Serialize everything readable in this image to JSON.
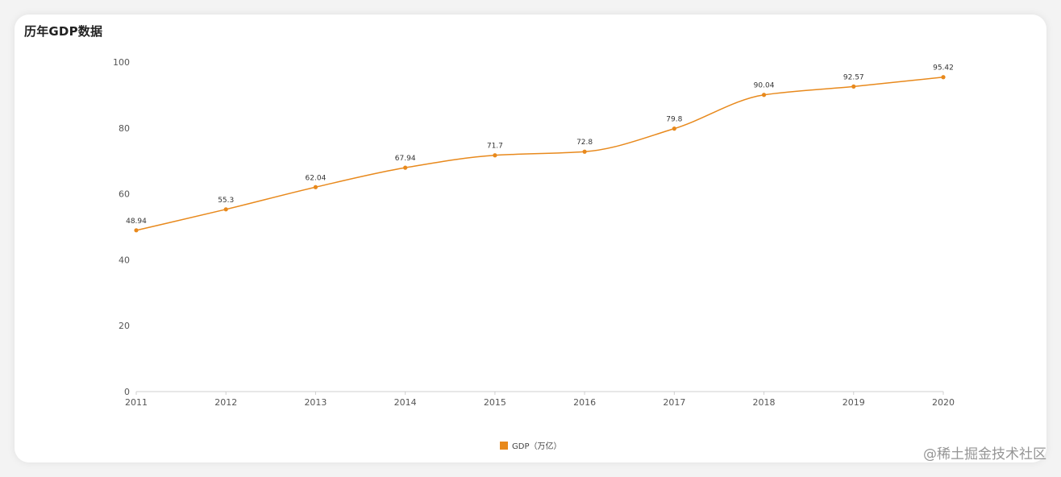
{
  "page": {
    "title": "历年GDP数据",
    "watermark": "@稀土掘金技术社区"
  },
  "chart_data": {
    "type": "line",
    "title": "历年GDP数据",
    "categories": [
      "2011",
      "2012",
      "2013",
      "2014",
      "2015",
      "2016",
      "2017",
      "2018",
      "2019",
      "2020"
    ],
    "series": [
      {
        "name": "GDP（万亿）",
        "values": [
          48.94,
          55.3,
          62.04,
          67.94,
          71.7,
          72.8,
          79.8,
          90.04,
          92.57,
          95.42
        ],
        "color": "#e8891c"
      }
    ],
    "yticks": [
      0,
      20,
      40,
      60,
      80,
      100
    ],
    "ylim": [
      0,
      100
    ],
    "xlabel": "",
    "ylabel": "",
    "grid": false,
    "legend": "bottom-center",
    "smooth": true
  }
}
